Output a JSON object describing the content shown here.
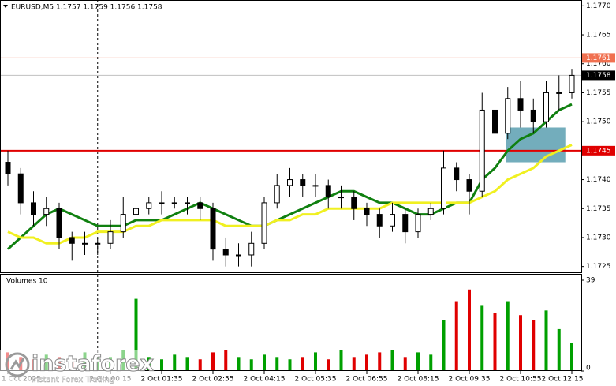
{
  "chart_data": {
    "type": "candlestick",
    "title": "EURUSD,M5  1.1757 1.1759 1.1756 1.1758",
    "volume_title": "Volumes 10",
    "logo": {
      "name": "instaforex",
      "tagline": "Instant Forex Trading"
    },
    "categories": [
      "1 Oct 2025",
      null,
      null,
      null,
      null,
      null,
      null,
      null,
      "2 Oct 00:15",
      null,
      null,
      null,
      "2 Oct 01:35",
      null,
      null,
      null,
      "2 Oct 02:55",
      null,
      null,
      null,
      "2 Oct 04:15",
      null,
      null,
      null,
      "2 Oct 05:35",
      null,
      null,
      null,
      "2 Oct 06:55",
      null,
      null,
      null,
      "2 Oct 08:15",
      null,
      null,
      null,
      "2 Oct 09:35",
      null,
      null,
      null,
      "2 Oct 10:55",
      null,
      null,
      null,
      "2 Oct 12:15"
    ],
    "open": [
      1.1743,
      1.1741,
      1.1736,
      1.1734,
      1.1735,
      1.173,
      1.1729,
      1.1729,
      1.1729,
      1.1731,
      1.1734,
      1.1735,
      1.1736,
      1.1736,
      1.1736,
      1.1736,
      1.1735,
      1.1728,
      1.1727,
      1.1727,
      1.1729,
      1.1736,
      1.1739,
      1.174,
      1.1739,
      1.1739,
      1.1737,
      1.1737,
      1.1735,
      1.1734,
      1.1732,
      1.1734,
      1.1731,
      1.1734,
      1.1735,
      1.1742,
      1.174,
      1.1738,
      1.1752,
      1.1748,
      1.1754,
      1.1752,
      1.175,
      1.1755,
      1.1755
    ],
    "high": [
      1.1745,
      1.1742,
      1.1738,
      1.1737,
      1.1736,
      1.1731,
      1.1731,
      1.173,
      1.1733,
      1.1737,
      1.1738,
      1.1737,
      1.1738,
      1.1737,
      1.1737,
      1.1737,
      1.1736,
      1.173,
      1.1729,
      1.1731,
      1.1737,
      1.1741,
      1.1742,
      1.1741,
      1.1741,
      1.174,
      1.1739,
      1.1738,
      1.1736,
      1.1735,
      1.1736,
      1.1735,
      1.1735,
      1.1736,
      1.1745,
      1.1743,
      1.1741,
      1.1755,
      1.1757,
      1.1756,
      1.1757,
      1.1754,
      1.1757,
      1.1758,
      1.1759
    ],
    "low": [
      1.1739,
      1.1734,
      1.1732,
      1.1732,
      1.1728,
      1.1726,
      1.1727,
      1.1727,
      1.1728,
      1.173,
      1.1733,
      1.1734,
      1.1734,
      1.1735,
      1.1734,
      1.1733,
      1.1726,
      1.1725,
      1.1725,
      1.1725,
      1.1728,
      1.1735,
      1.1737,
      1.1737,
      1.1737,
      1.1735,
      1.1735,
      1.1733,
      1.1732,
      1.173,
      1.1731,
      1.1729,
      1.173,
      1.1733,
      1.1734,
      1.1738,
      1.1734,
      1.1737,
      1.1746,
      1.1747,
      1.1749,
      1.1748,
      1.1749,
      1.1752,
      1.1754
    ],
    "close": [
      1.1741,
      1.1736,
      1.1734,
      1.1735,
      1.173,
      1.1729,
      1.1729,
      1.1729,
      1.1731,
      1.1734,
      1.1735,
      1.1736,
      1.1736,
      1.1736,
      1.1736,
      1.1735,
      1.1728,
      1.1727,
      1.1727,
      1.1729,
      1.1736,
      1.1739,
      1.174,
      1.1739,
      1.1739,
      1.1737,
      1.1737,
      1.1735,
      1.1734,
      1.1732,
      1.1734,
      1.1731,
      1.1734,
      1.1735,
      1.1742,
      1.174,
      1.1738,
      1.1752,
      1.1748,
      1.1754,
      1.1752,
      1.175,
      1.1755,
      1.1755,
      1.1758
    ],
    "volume": [
      8,
      6,
      5,
      7,
      6,
      5,
      8,
      7,
      6,
      9,
      31,
      6,
      5,
      7,
      6,
      5,
      8,
      9,
      6,
      5,
      7,
      6,
      5,
      6,
      8,
      5,
      9,
      6,
      7,
      8,
      9,
      6,
      8,
      7,
      22,
      30,
      35,
      28,
      25,
      30,
      24,
      22,
      26,
      18,
      12
    ],
    "up_color": "#00a000",
    "down_color": "#e00000",
    "series": [
      {
        "color": "#108010",
        "values": [
          1.1728,
          1.173,
          1.1732,
          1.1734,
          1.1735,
          1.1734,
          1.1733,
          1.1732,
          1.1732,
          1.1732,
          1.1733,
          1.1733,
          1.1733,
          1.1734,
          1.1735,
          1.1736,
          1.1735,
          1.1734,
          1.1733,
          1.1732,
          1.1732,
          1.1733,
          1.1734,
          1.1735,
          1.1736,
          1.1737,
          1.1738,
          1.1738,
          1.1737,
          1.1736,
          1.1736,
          1.1735,
          1.1734,
          1.1734,
          1.1735,
          1.1736,
          1.1736,
          1.174,
          1.1742,
          1.1745,
          1.1747,
          1.1748,
          1.175,
          1.1752,
          1.1753
        ]
      },
      {
        "color": "#f0f020",
        "values": [
          1.1731,
          1.173,
          1.173,
          1.1729,
          1.1729,
          1.173,
          1.173,
          1.1731,
          1.1731,
          1.1731,
          1.1732,
          1.1732,
          1.1733,
          1.1733,
          1.1733,
          1.1733,
          1.1733,
          1.1732,
          1.1732,
          1.1732,
          1.1732,
          1.1733,
          1.1733,
          1.1734,
          1.1734,
          1.1735,
          1.1735,
          1.1735,
          1.1735,
          1.1735,
          1.1736,
          1.1736,
          1.1736,
          1.1736,
          1.1736,
          1.1736,
          1.1736,
          1.1737,
          1.1738,
          1.174,
          1.1741,
          1.1742,
          1.1744,
          1.1745,
          1.1746
        ]
      }
    ],
    "levels": [
      {
        "value": 1.1761,
        "color": "#f07050"
      },
      {
        "value": 1.1745,
        "color": "#e00000"
      }
    ],
    "last": 1.1758,
    "zone": {
      "from": 39,
      "to": 43,
      "top": 1.1749,
      "bottom": 1.1743,
      "color": "#5a9fb0"
    },
    "vline_index": 7,
    "ylim": [
      1.1724,
      1.1771
    ],
    "yticks": [
      {
        "value": 1.177,
        "label": "1.1770"
      },
      1.1765,
      {
        "value": 1.176,
        "label": "1.1760"
      },
      1.1755,
      {
        "value": 1.175,
        "label": "1.1750"
      },
      1.1745,
      {
        "value": 1.174,
        "label": "1.1740"
      },
      1.1735,
      {
        "value": 1.173,
        "label": "1.1730"
      },
      1.1725
    ],
    "vlim": [
      0,
      39
    ],
    "vticks": [
      0,
      39
    ]
  }
}
